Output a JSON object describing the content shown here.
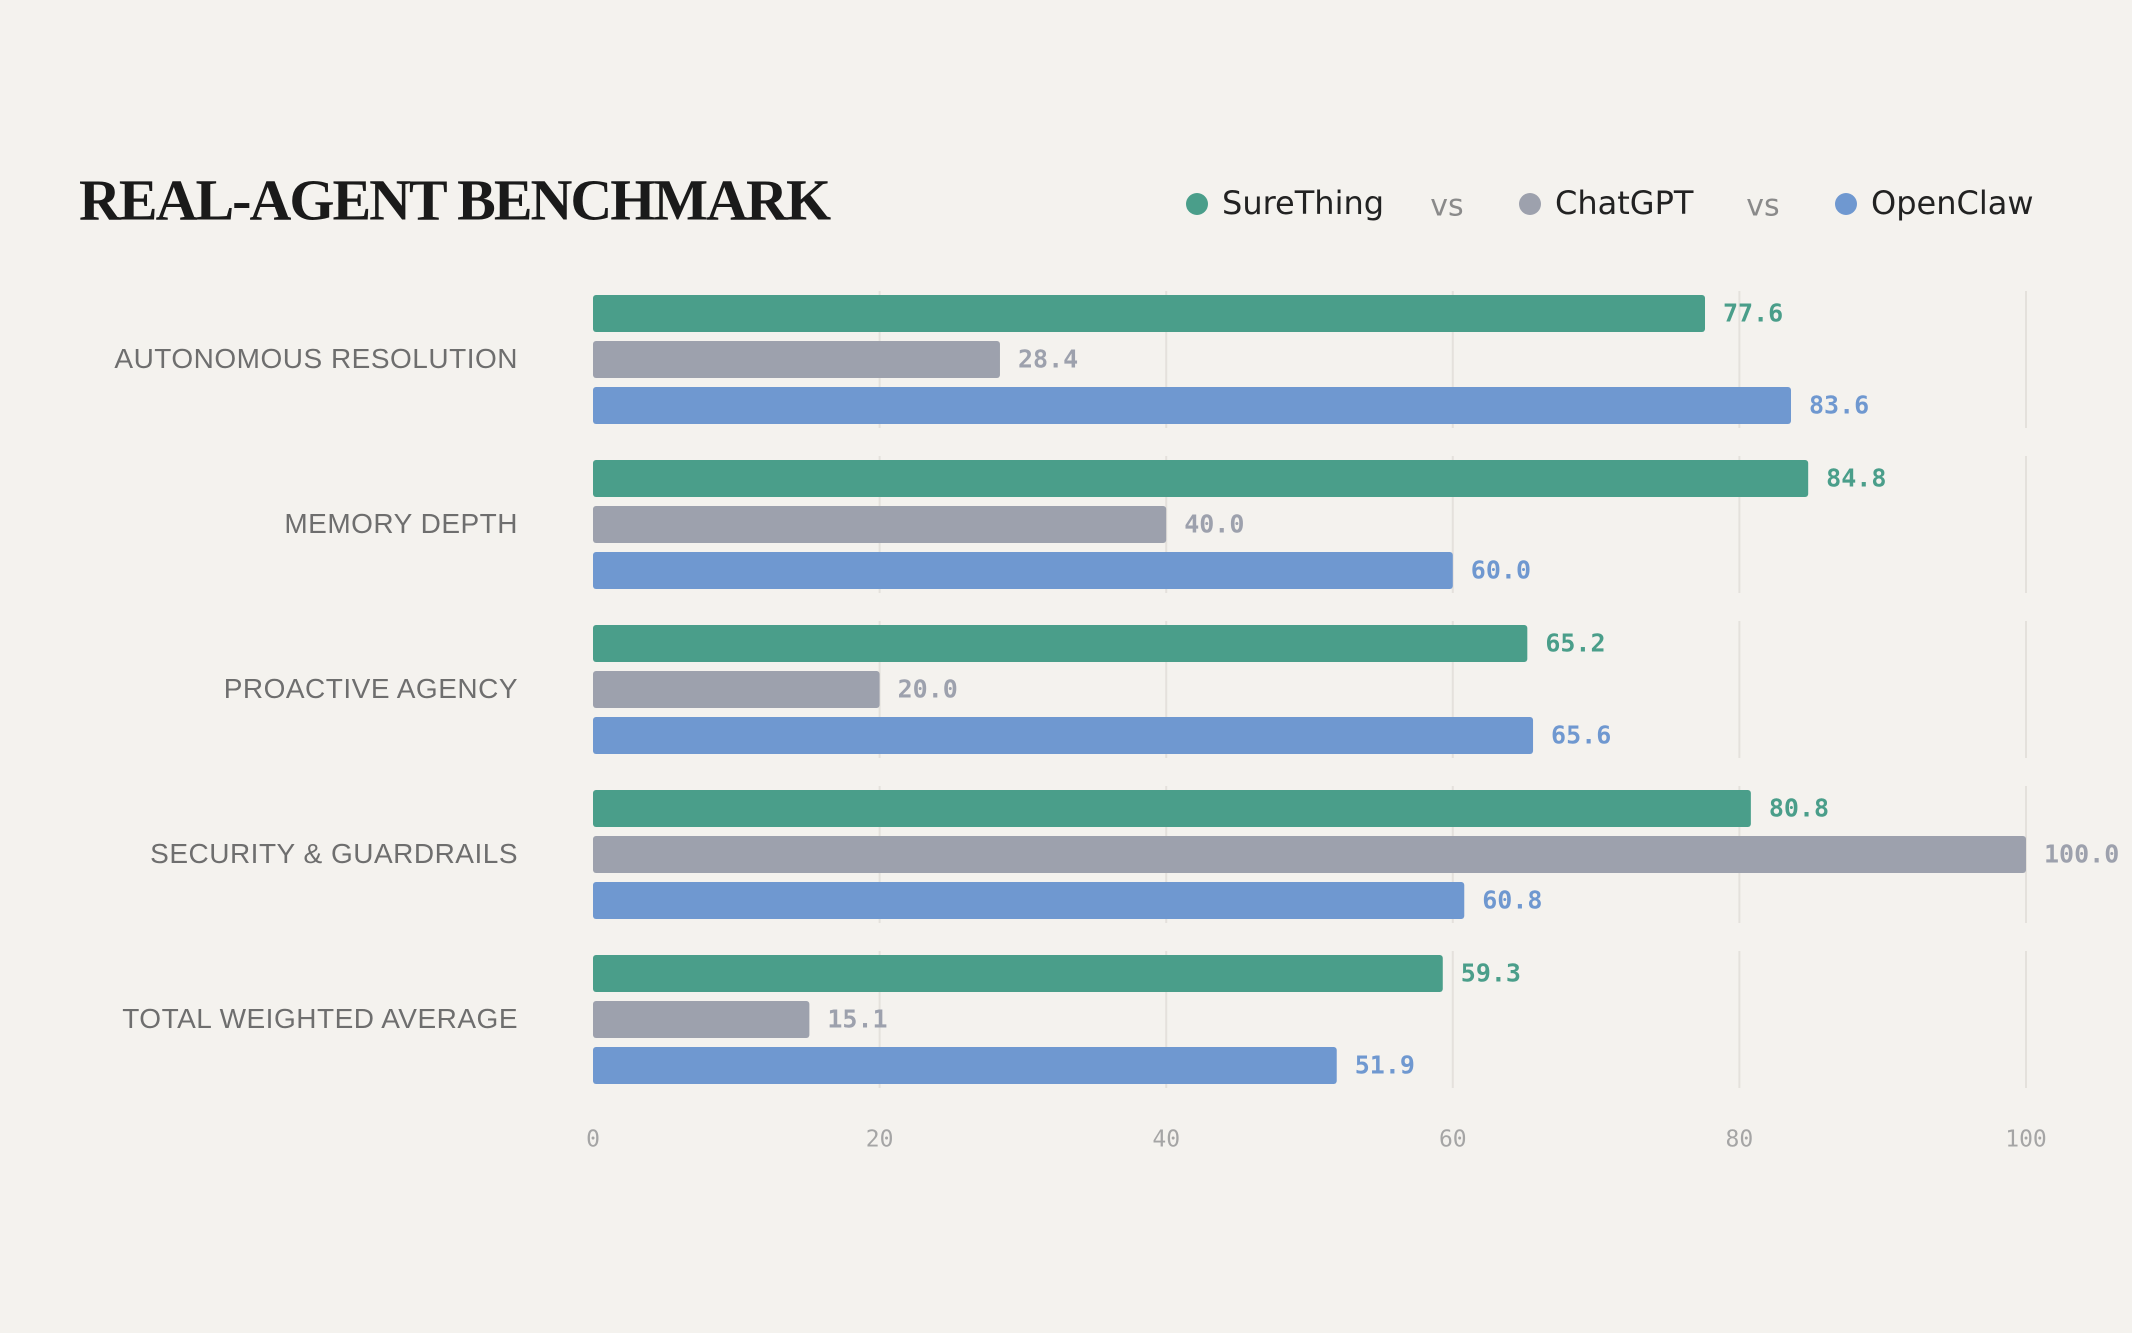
{
  "chart_data": {
    "type": "hbar",
    "title": "REAL-AGENT BENCHMARK",
    "separator": "vs",
    "categories": [
      "AUTONOMOUS RESOLUTION",
      "MEMORY DEPTH",
      "PROACTIVE AGENCY",
      "SECURITY & GUARDRAILS",
      "TOTAL WEIGHTED AVERAGE"
    ],
    "series": [
      {
        "name": "SureThing",
        "color": "#4a9e8a",
        "values": [
          77.6,
          84.8,
          65.2,
          80.8,
          59.3
        ],
        "value_labels": [
          "77.6",
          "84.8",
          "65.2",
          "80.8",
          "59.3"
        ]
      },
      {
        "name": "ChatGPT",
        "color": "#9da1ad",
        "values": [
          28.4,
          40.0,
          20.0,
          100.0,
          15.1
        ],
        "value_labels": [
          "28.4",
          "40.0",
          "20.0",
          "100.0",
          "15.1"
        ]
      },
      {
        "name": "OpenClaw",
        "color": "#6f98d0",
        "values": [
          83.6,
          60.0,
          65.6,
          60.8,
          51.9
        ],
        "value_labels": [
          "83.6",
          "60.0",
          "65.6",
          "60.8",
          "51.9"
        ]
      }
    ],
    "xlim": [
      0,
      100
    ],
    "xticks": [
      0,
      20,
      40,
      60,
      80,
      100
    ],
    "grid": true
  }
}
